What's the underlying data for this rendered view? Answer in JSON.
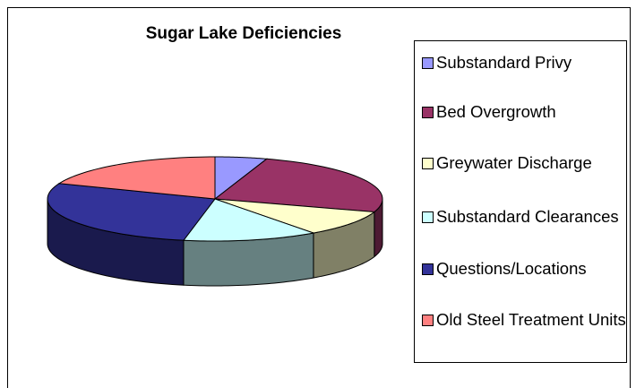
{
  "chart_data": {
    "type": "pie",
    "title": "Sugar Lake Deficiencies",
    "categories": [
      "Substandard Privy",
      "Bed Overgrowth",
      "Greywater Discharge",
      "Substandard Clearances",
      "Questions/Locations",
      "Old Steel Treatment Units"
    ],
    "values": [
      5,
      25,
      10,
      13,
      28,
      19
    ],
    "colors": [
      "#9999ff",
      "#993366",
      "#ffffcc",
      "#ccffff",
      "#333399",
      "#ff8080"
    ],
    "legend": "right"
  }
}
